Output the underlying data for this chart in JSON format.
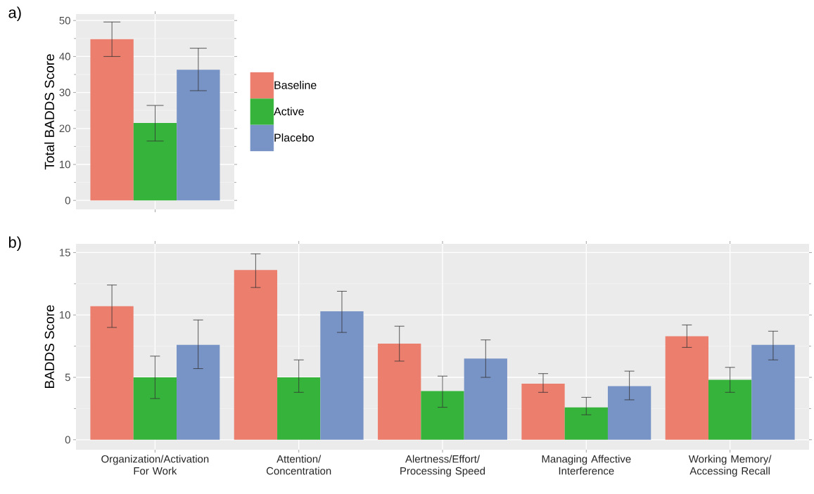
{
  "chart_data": [
    {
      "type": "bar",
      "title": "a)",
      "ylabel": "Total BADDS Score",
      "categories": [
        null
      ],
      "series": [
        {
          "name": "Baseline",
          "color": "#ec7e6e",
          "values": [
            44.8
          ],
          "errors": [
            [
              40.0,
              49.6
            ]
          ]
        },
        {
          "name": "Active",
          "color": "#36b33b",
          "values": [
            21.5
          ],
          "errors": [
            [
              16.5,
              26.4
            ]
          ]
        },
        {
          "name": "Placebo",
          "color": "#7893c6",
          "values": [
            36.3
          ],
          "errors": [
            [
              30.5,
              42.3
            ]
          ]
        }
      ],
      "ylim": [
        -2.5,
        51.8
      ],
      "yticks": [
        0,
        10,
        20,
        30,
        40,
        50
      ],
      "grid": true,
      "legend": "right"
    },
    {
      "type": "bar",
      "title": "b)",
      "ylabel": "BADDS Score",
      "categories": [
        "Organization/Activation For Work",
        "Attention/ Concentration",
        "Alertness/Effort/ Processing Speed",
        "Managing Affective Interference",
        "Working Memory/ Accessing Recall"
      ],
      "series": [
        {
          "color": "#ec7e6e",
          "values": [
            10.7,
            13.6,
            7.7,
            4.5,
            8.3
          ],
          "errors": [
            [
              9.0,
              12.4
            ],
            [
              12.2,
              14.9
            ],
            [
              6.3,
              9.1
            ],
            [
              3.8,
              5.3
            ],
            [
              7.4,
              9.2
            ]
          ]
        },
        {
          "color": "#36b33b",
          "values": [
            5.0,
            5.0,
            3.9,
            2.6,
            4.8
          ],
          "errors": [
            [
              3.3,
              6.7
            ],
            [
              3.8,
              6.4
            ],
            [
              2.6,
              5.1
            ],
            [
              2.0,
              3.4
            ],
            [
              3.8,
              5.8
            ]
          ]
        },
        {
          "color": "#7893c6",
          "values": [
            7.6,
            10.3,
            6.5,
            4.3,
            7.6
          ],
          "errors": [
            [
              5.7,
              9.6
            ],
            [
              8.6,
              11.9
            ],
            [
              5.0,
              8.0
            ],
            [
              3.2,
              5.5
            ],
            [
              6.4,
              8.7
            ]
          ]
        }
      ],
      "ylim": [
        -0.8,
        15.7
      ],
      "yticks": [
        0,
        5,
        10,
        15
      ],
      "grid": true
    }
  ]
}
